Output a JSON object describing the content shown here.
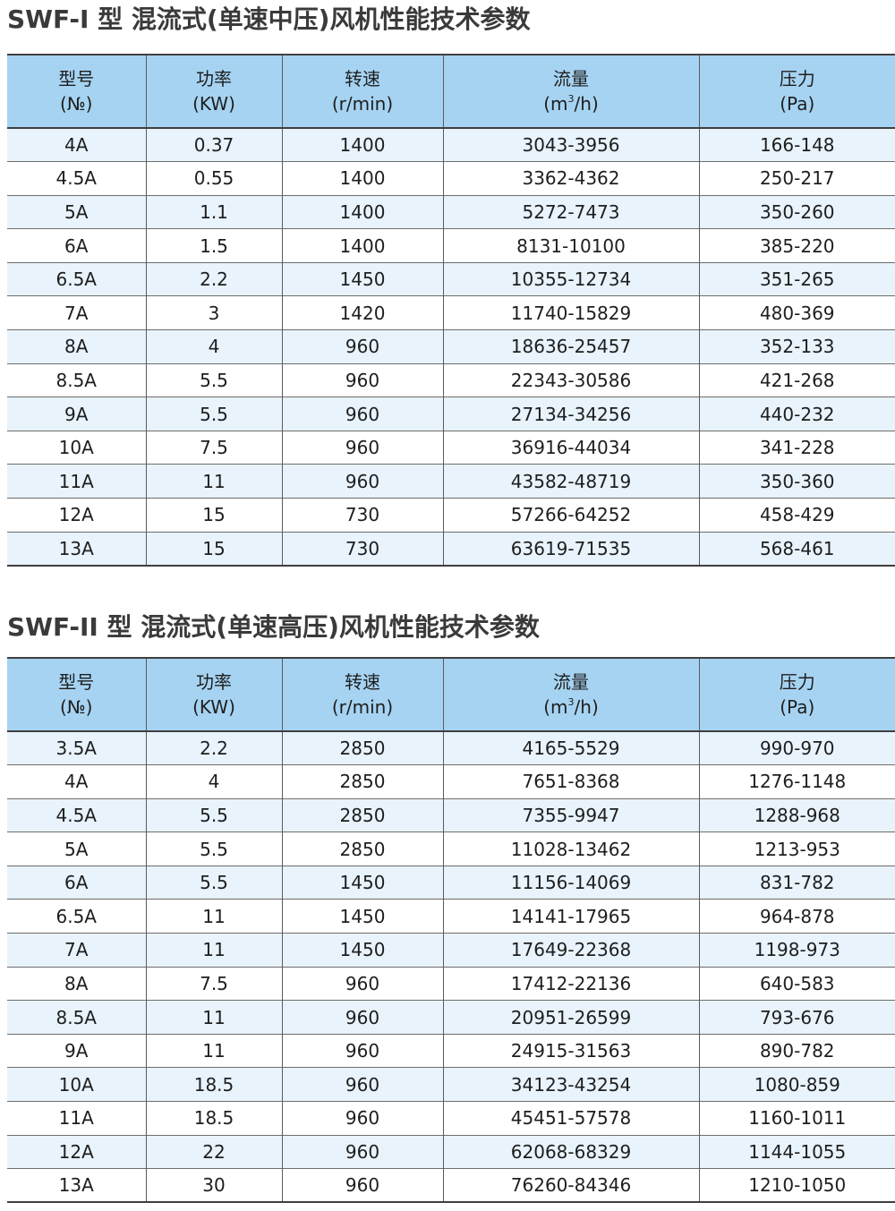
{
  "sections": [
    {
      "title": "SWF-I 型 混流式(单速中压)风机性能技术参数",
      "headers": [
        {
          "name": "型号",
          "unit": "(№)"
        },
        {
          "name": "功率",
          "unit": "(KW)"
        },
        {
          "name": "转速",
          "unit": "(r/min)"
        },
        {
          "name": "流量",
          "unit_pre": "(m",
          "unit_sup": "3",
          "unit_post": "/h)"
        },
        {
          "name": "压力",
          "unit": "(Pa)"
        }
      ],
      "rows": [
        [
          "4A",
          "0.37",
          "1400",
          "3043-3956",
          "166-148"
        ],
        [
          "4.5A",
          "0.55",
          "1400",
          "3362-4362",
          "250-217"
        ],
        [
          "5A",
          "1.1",
          "1400",
          "5272-7473",
          "350-260"
        ],
        [
          "6A",
          "1.5",
          "1400",
          "8131-10100",
          "385-220"
        ],
        [
          "6.5A",
          "2.2",
          "1450",
          "10355-12734",
          "351-265"
        ],
        [
          "7A",
          "3",
          "1420",
          "11740-15829",
          "480-369"
        ],
        [
          "8A",
          "4",
          "960",
          "18636-25457",
          "352-133"
        ],
        [
          "8.5A",
          "5.5",
          "960",
          "22343-30586",
          "421-268"
        ],
        [
          "9A",
          "5.5",
          "960",
          "27134-34256",
          "440-232"
        ],
        [
          "10A",
          "7.5",
          "960",
          "36916-44034",
          "341-228"
        ],
        [
          "11A",
          "11",
          "960",
          "43582-48719",
          "350-360"
        ],
        [
          "12A",
          "15",
          "730",
          "57266-64252",
          "458-429"
        ],
        [
          "13A",
          "15",
          "730",
          "63619-71535",
          "568-461"
        ]
      ]
    },
    {
      "title": "SWF-II 型 混流式(单速高压)风机性能技术参数",
      "headers": [
        {
          "name": "型号",
          "unit": "(№)"
        },
        {
          "name": "功率",
          "unit": "(KW)"
        },
        {
          "name": "转速",
          "unit": "(r/min)"
        },
        {
          "name": "流量",
          "unit_pre": "(m",
          "unit_sup": "3",
          "unit_post": "/h)"
        },
        {
          "name": "压力",
          "unit": "(Pa)"
        }
      ],
      "rows": [
        [
          "3.5A",
          "2.2",
          "2850",
          "4165-5529",
          "990-970"
        ],
        [
          "4A",
          "4",
          "2850",
          "7651-8368",
          "1276-1148"
        ],
        [
          "4.5A",
          "5.5",
          "2850",
          "7355-9947",
          "1288-968"
        ],
        [
          "5A",
          "5.5",
          "2850",
          "11028-13462",
          "1213-953"
        ],
        [
          "6A",
          "5.5",
          "1450",
          "11156-14069",
          "831-782"
        ],
        [
          "6.5A",
          "11",
          "1450",
          "14141-17965",
          "964-878"
        ],
        [
          "7A",
          "11",
          "1450",
          "17649-22368",
          "1198-973"
        ],
        [
          "8A",
          "7.5",
          "960",
          "17412-22136",
          "640-583"
        ],
        [
          "8.5A",
          "11",
          "960",
          "20951-26599",
          "793-676"
        ],
        [
          "9A",
          "11",
          "960",
          "24915-31563",
          "890-782"
        ],
        [
          "10A",
          "18.5",
          "960",
          "34123-43254",
          "1080-859"
        ],
        [
          "11A",
          "18.5",
          "960",
          "45451-57578",
          "1160-1011"
        ],
        [
          "12A",
          "22",
          "960",
          "62068-68329",
          "1144-1055"
        ],
        [
          "13A",
          "30",
          "960",
          "76260-84346",
          "1210-1050"
        ]
      ]
    }
  ],
  "colors": {
    "header_bg": "#a6d3f2",
    "alt_row_bg": "#e8f3fc",
    "title_text": "#3a3a3a",
    "rule": "#3f3f3f"
  }
}
